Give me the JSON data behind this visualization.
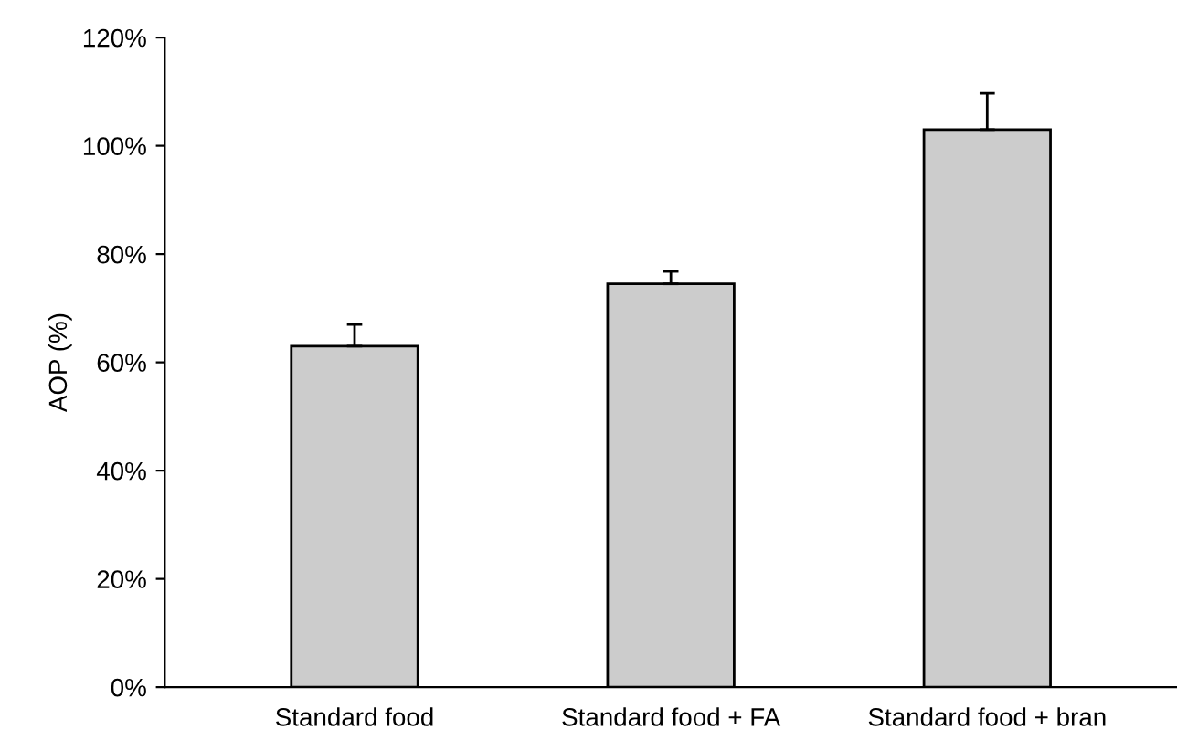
{
  "chart_data": {
    "type": "bar",
    "ylabel": "AOP (%)",
    "categories": [
      "Standard food",
      "Standard food + FA",
      "Standard food + bran"
    ],
    "values": [
      63,
      74.5,
      103
    ],
    "errors": [
      [
        63,
        67
      ],
      [
        74.5,
        76.8
      ],
      [
        103,
        109.7
      ]
    ],
    "color": "#cccccc",
    "ylim": [
      0,
      120
    ],
    "yticks": [
      {
        "value": 0,
        "label": "0%"
      },
      {
        "value": 20,
        "label": "20%"
      },
      {
        "value": 40,
        "label": "40%"
      },
      {
        "value": 60,
        "label": "60%"
      },
      {
        "value": 80,
        "label": "80%"
      },
      {
        "value": 100,
        "label": "100%"
      },
      {
        "value": 120,
        "label": "120%"
      }
    ],
    "grid": false,
    "legend": false
  }
}
